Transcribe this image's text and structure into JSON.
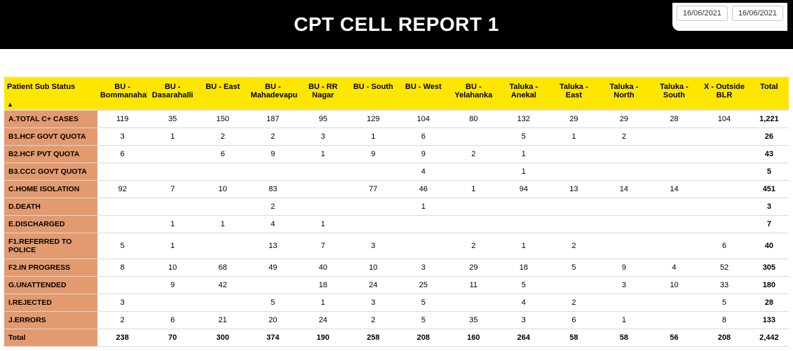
{
  "header": {
    "title": "CPT CELL REPORT 1",
    "date_from": "16/06/2021",
    "date_to": "16/06/2021"
  },
  "colors": {
    "header_bg": "#000000",
    "header_text": "#ffffff",
    "col_header_bg": "#ffe600",
    "row_label_bg": "#e39a6f",
    "border": "#d9d9d9"
  },
  "table": {
    "first_col_header": "Patient Sub Status",
    "columns": [
      "BU - Bommanahalli",
      "BU - Dasarahalli",
      "BU - East",
      "BU - Mahadevapura",
      "BU - RR Nagar",
      "BU - South",
      "BU - West",
      "BU - Yelahanka",
      "Taluka - Anekal",
      "Taluka - East",
      "Taluka - North",
      "Taluka - South",
      "X - Outside BLR"
    ],
    "total_header": "Total",
    "rows": [
      {
        "label": "A.TOTAL C+ CASES",
        "cells": [
          "119",
          "35",
          "150",
          "187",
          "95",
          "129",
          "104",
          "80",
          "132",
          "29",
          "29",
          "28",
          "104"
        ],
        "total": "1,221"
      },
      {
        "label": "B1.HCF GOVT QUOTA",
        "cells": [
          "3",
          "1",
          "2",
          "2",
          "3",
          "1",
          "6",
          "",
          "5",
          "1",
          "2",
          "",
          ""
        ],
        "total": "26"
      },
      {
        "label": "B2.HCF PVT QUOTA",
        "cells": [
          "6",
          "",
          "6",
          "9",
          "1",
          "9",
          "9",
          "2",
          "1",
          "",
          "",
          "",
          ""
        ],
        "total": "43"
      },
      {
        "label": "B3.CCC GOVT QUOTA",
        "cells": [
          "",
          "",
          "",
          "",
          "",
          "",
          "4",
          "",
          "1",
          "",
          "",
          "",
          ""
        ],
        "total": "5"
      },
      {
        "label": "C.HOME ISOLATION",
        "cells": [
          "92",
          "7",
          "10",
          "83",
          "",
          "77",
          "46",
          "1",
          "94",
          "13",
          "14",
          "14",
          ""
        ],
        "total": "451"
      },
      {
        "label": "D.DEATH",
        "cells": [
          "",
          "",
          "",
          "2",
          "",
          "",
          "1",
          "",
          "",
          "",
          "",
          "",
          ""
        ],
        "total": "3"
      },
      {
        "label": "E.DISCHARGED",
        "cells": [
          "",
          "1",
          "1",
          "4",
          "1",
          "",
          "",
          "",
          "",
          "",
          "",
          "",
          ""
        ],
        "total": "7"
      },
      {
        "label": "F1.REFERRED TO POLICE",
        "cells": [
          "5",
          "1",
          "",
          "13",
          "7",
          "3",
          "",
          "2",
          "1",
          "2",
          "",
          "",
          "6"
        ],
        "total": "40"
      },
      {
        "label": "F2.IN PROGRESS",
        "cells": [
          "8",
          "10",
          "68",
          "49",
          "40",
          "10",
          "3",
          "29",
          "18",
          "5",
          "9",
          "4",
          "52"
        ],
        "total": "305"
      },
      {
        "label": "G.UNATTENDED",
        "cells": [
          "",
          "9",
          "42",
          "",
          "18",
          "24",
          "25",
          "11",
          "5",
          "",
          "3",
          "10",
          "33"
        ],
        "total": "180"
      },
      {
        "label": "I.REJECTED",
        "cells": [
          "3",
          "",
          "",
          "5",
          "1",
          "3",
          "5",
          "",
          "4",
          "2",
          "",
          "",
          "5"
        ],
        "total": "28"
      },
      {
        "label": "J.ERRORS",
        "cells": [
          "2",
          "6",
          "21",
          "20",
          "24",
          "2",
          "5",
          "35",
          "3",
          "6",
          "1",
          "",
          "8"
        ],
        "total": "133"
      }
    ],
    "footer": {
      "label": "Total",
      "cells": [
        "238",
        "70",
        "300",
        "374",
        "190",
        "258",
        "208",
        "160",
        "264",
        "58",
        "58",
        "56",
        "208"
      ],
      "total": "2,442"
    }
  }
}
